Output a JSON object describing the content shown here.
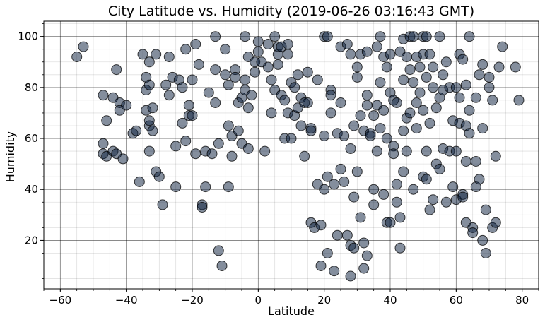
{
  "chart_data": {
    "type": "scatter",
    "title": "City Latitude vs. Humidity (2019-06-26 03:16:43 GMT)",
    "xlabel": "Latitude",
    "ylabel": "Humidity",
    "xlim": [
      -65,
      85
    ],
    "ylim": [
      1,
      106
    ],
    "xticks": [
      -60,
      -40,
      -20,
      0,
      20,
      40,
      60,
      80
    ],
    "yticks": [
      20,
      40,
      60,
      80,
      100
    ],
    "x_minor_step": 5,
    "y_minor_step": 5,
    "grid": "major and minor",
    "marker_color": "#0a1e3c",
    "marker_edge": "#000000",
    "marker_alpha": 0.5,
    "points": [
      [
        -55,
        92
      ],
      [
        -53,
        96
      ],
      [
        -47,
        77
      ],
      [
        -47,
        58
      ],
      [
        -47,
        54
      ],
      [
        -46,
        53
      ],
      [
        -46,
        67
      ],
      [
        -44,
        55
      ],
      [
        -44,
        76
      ],
      [
        -43,
        87
      ],
      [
        -43,
        54
      ],
      [
        -42,
        74
      ],
      [
        -42,
        71
      ],
      [
        -41,
        52
      ],
      [
        -40,
        73
      ],
      [
        -38,
        62
      ],
      [
        -37,
        63
      ],
      [
        -36,
        43
      ],
      [
        -35,
        93
      ],
      [
        -34,
        84
      ],
      [
        -34,
        79
      ],
      [
        -34,
        71
      ],
      [
        -33,
        81
      ],
      [
        -33,
        90
      ],
      [
        -33,
        65
      ],
      [
        -33,
        67
      ],
      [
        -33,
        55
      ],
      [
        -32,
        63
      ],
      [
        -32,
        72
      ],
      [
        -31,
        93
      ],
      [
        -31,
        47
      ],
      [
        -30,
        45
      ],
      [
        -29,
        34
      ],
      [
        -28,
        81
      ],
      [
        -27,
        92
      ],
      [
        -27,
        77
      ],
      [
        -26,
        84
      ],
      [
        -25,
        57
      ],
      [
        -25,
        41
      ],
      [
        -24,
        83
      ],
      [
        -23,
        66
      ],
      [
        -23,
        80
      ],
      [
        -22,
        59
      ],
      [
        -22,
        95
      ],
      [
        -21,
        69
      ],
      [
        -21,
        73
      ],
      [
        -20,
        83
      ],
      [
        -20,
        69
      ],
      [
        -19,
        97
      ],
      [
        -19,
        54
      ],
      [
        -18,
        89
      ],
      [
        -17,
        34
      ],
      [
        -17,
        33
      ],
      [
        -16,
        41
      ],
      [
        -16,
        55
      ],
      [
        -15,
        78
      ],
      [
        -14,
        54
      ],
      [
        -13,
        100
      ],
      [
        -13,
        87
      ],
      [
        -13,
        74
      ],
      [
        -12,
        58
      ],
      [
        -12,
        16
      ],
      [
        -11,
        10
      ],
      [
        -10,
        85
      ],
      [
        -10,
        95
      ],
      [
        -9,
        81
      ],
      [
        -9,
        41
      ],
      [
        -9,
        65
      ],
      [
        -8,
        61
      ],
      [
        -8,
        53
      ],
      [
        -7,
        87
      ],
      [
        -7,
        84
      ],
      [
        -6,
        74
      ],
      [
        -6,
        63
      ],
      [
        -5,
        58
      ],
      [
        -5,
        76
      ],
      [
        -4,
        100
      ],
      [
        -4,
        83
      ],
      [
        -4,
        79
      ],
      [
        -3,
        92
      ],
      [
        -3,
        72
      ],
      [
        -3,
        56
      ],
      [
        -2,
        77
      ],
      [
        -1,
        86
      ],
      [
        -1,
        90
      ],
      [
        0,
        94
      ],
      [
        0,
        98
      ],
      [
        1,
        90
      ],
      [
        2,
        55
      ],
      [
        3,
        97
      ],
      [
        3,
        88
      ],
      [
        4,
        83
      ],
      [
        4,
        70
      ],
      [
        5,
        100
      ],
      [
        5,
        79
      ],
      [
        6,
        93
      ],
      [
        6,
        89
      ],
      [
        6,
        96
      ],
      [
        7,
        77
      ],
      [
        7,
        96
      ],
      [
        8,
        60
      ],
      [
        8,
        75
      ],
      [
        9,
        97
      ],
      [
        9,
        93
      ],
      [
        9,
        70
      ],
      [
        10,
        82
      ],
      [
        10,
        60
      ],
      [
        11,
        80
      ],
      [
        11,
        69
      ],
      [
        12,
        85
      ],
      [
        12,
        72
      ],
      [
        13,
        76
      ],
      [
        13,
        65
      ],
      [
        14,
        74
      ],
      [
        14,
        53
      ],
      [
        15,
        86
      ],
      [
        15,
        74
      ],
      [
        16,
        64
      ],
      [
        16,
        27
      ],
      [
        16,
        63
      ],
      [
        17,
        25
      ],
      [
        18,
        83
      ],
      [
        18,
        42
      ],
      [
        19,
        26
      ],
      [
        19,
        10
      ],
      [
        20,
        100
      ],
      [
        20,
        61
      ],
      [
        20,
        40
      ],
      [
        21,
        100
      ],
      [
        21,
        45
      ],
      [
        21,
        15
      ],
      [
        22,
        79
      ],
      [
        22,
        77
      ],
      [
        22,
        70
      ],
      [
        23,
        42
      ],
      [
        23,
        8
      ],
      [
        24,
        62
      ],
      [
        24,
        22
      ],
      [
        25,
        96
      ],
      [
        25,
        74
      ],
      [
        25,
        48
      ],
      [
        26,
        43
      ],
      [
        26,
        61
      ],
      [
        27,
        97
      ],
      [
        27,
        22
      ],
      [
        28,
        93
      ],
      [
        28,
        56
      ],
      [
        28,
        18
      ],
      [
        28,
        6
      ],
      [
        29,
        65
      ],
      [
        29,
        37
      ],
      [
        29,
        17
      ],
      [
        30,
        88
      ],
      [
        30,
        84
      ],
      [
        30,
        47
      ],
      [
        31,
        93
      ],
      [
        31,
        69
      ],
      [
        31,
        29
      ],
      [
        32,
        19
      ],
      [
        32,
        9
      ],
      [
        32,
        63
      ],
      [
        33,
        94
      ],
      [
        33,
        73
      ],
      [
        33,
        77
      ],
      [
        33,
        14
      ],
      [
        34,
        62
      ],
      [
        34,
        61
      ],
      [
        35,
        69
      ],
      [
        35,
        40
      ],
      [
        35,
        34
      ],
      [
        36,
        96
      ],
      [
        36,
        73
      ],
      [
        36,
        55
      ],
      [
        37,
        100
      ],
      [
        37,
        82
      ],
      [
        37,
        64
      ],
      [
        38,
        92
      ],
      [
        38,
        71
      ],
      [
        38,
        38
      ],
      [
        39,
        88
      ],
      [
        39,
        27
      ],
      [
        39,
        60
      ],
      [
        40,
        93
      ],
      [
        40,
        78
      ],
      [
        40,
        27
      ],
      [
        41,
        57
      ],
      [
        41,
        75
      ],
      [
        41,
        54
      ],
      [
        42,
        74
      ],
      [
        42,
        42
      ],
      [
        42,
        35
      ],
      [
        43,
        94
      ],
      [
        43,
        17
      ],
      [
        43,
        29
      ],
      [
        44,
        99
      ],
      [
        44,
        83
      ],
      [
        44,
        63
      ],
      [
        44,
        47
      ],
      [
        45,
        68
      ],
      [
        45,
        92
      ],
      [
        45,
        55
      ],
      [
        46,
        100
      ],
      [
        46,
        87
      ],
      [
        46,
        70
      ],
      [
        47,
        100
      ],
      [
        47,
        82
      ],
      [
        47,
        40
      ],
      [
        48,
        92
      ],
      [
        48,
        74
      ],
      [
        48,
        64
      ],
      [
        49,
        88
      ],
      [
        49,
        78
      ],
      [
        50,
        100
      ],
      [
        50,
        93
      ],
      [
        50,
        71
      ],
      [
        50,
        45
      ],
      [
        51,
        100
      ],
      [
        51,
        84
      ],
      [
        51,
        55
      ],
      [
        51,
        44
      ],
      [
        52,
        93
      ],
      [
        52,
        66
      ],
      [
        52,
        32
      ],
      [
        53,
        88
      ],
      [
        53,
        80
      ],
      [
        53,
        36
      ],
      [
        54,
        72
      ],
      [
        54,
        50
      ],
      [
        55,
        100
      ],
      [
        55,
        76
      ],
      [
        55,
        48
      ],
      [
        56,
        85
      ],
      [
        56,
        79
      ],
      [
        56,
        56
      ],
      [
        57,
        90
      ],
      [
        57,
        35
      ],
      [
        58,
        80
      ],
      [
        58,
        55
      ],
      [
        59,
        67
      ],
      [
        59,
        41
      ],
      [
        60,
        80
      ],
      [
        60,
        55
      ],
      [
        60,
        36
      ],
      [
        61,
        93
      ],
      [
        61,
        76
      ],
      [
        61,
        66
      ],
      [
        62,
        91
      ],
      [
        62,
        38
      ],
      [
        62,
        37
      ],
      [
        63,
        81
      ],
      [
        63,
        65
      ],
      [
        63,
        51
      ],
      [
        63,
        27
      ],
      [
        64,
        100
      ],
      [
        64,
        71
      ],
      [
        64,
        62
      ],
      [
        65,
        25
      ],
      [
        65,
        23
      ],
      [
        66,
        76
      ],
      [
        66,
        51
      ],
      [
        66,
        41
      ],
      [
        67,
        44
      ],
      [
        67,
        85
      ],
      [
        68,
        89
      ],
      [
        68,
        64
      ],
      [
        68,
        20
      ],
      [
        69,
        15
      ],
      [
        69,
        32
      ],
      [
        70,
        84
      ],
      [
        70,
        80
      ],
      [
        71,
        75
      ],
      [
        71,
        25
      ],
      [
        72,
        53
      ],
      [
        72,
        27
      ],
      [
        73,
        88
      ],
      [
        74,
        96
      ],
      [
        78,
        88
      ],
      [
        79,
        75
      ]
    ]
  }
}
